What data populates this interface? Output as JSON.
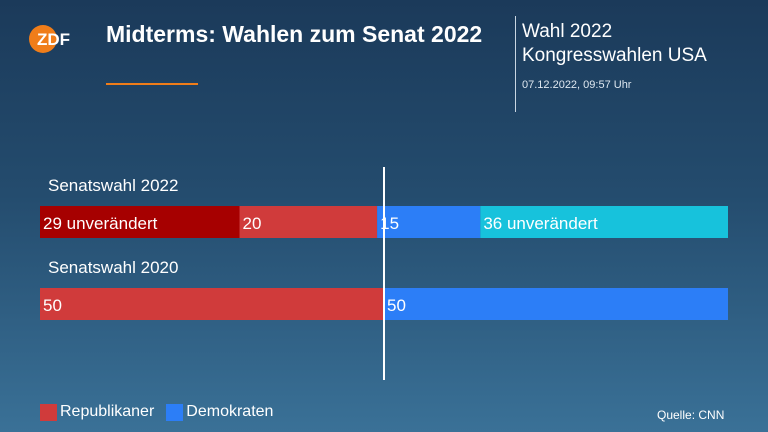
{
  "header": {
    "logo_text": "ZDF",
    "title": "Midterms: Wahlen zum Senat 2022",
    "right_line1": "Wahl 2022",
    "right_line2": "Kongresswahlen USA",
    "timestamp": "07.12.2022, 09:57 Uhr"
  },
  "colors": {
    "accent": "#f07d19",
    "republican_not_up": "#a60000",
    "republican": "#d03b3b",
    "democrat": "#2c7ef7",
    "democrat_not_up": "#17c2dc"
  },
  "chart_data": {
    "type": "bar",
    "orientation": "horizontal",
    "stacked": true,
    "xlim": [
      0,
      100
    ],
    "majority_line": 50,
    "rows": [
      {
        "label": "Senatswahl 2022",
        "segments": [
          {
            "value": 29,
            "label": "29 unverändert",
            "color": "#a60000"
          },
          {
            "value": 20,
            "label": "20",
            "color": "#d03b3b"
          },
          {
            "value": 15,
            "label": "15",
            "color": "#2c7ef7"
          },
          {
            "value": 36,
            "label": "36 unverändert",
            "color": "#17c2dc"
          }
        ]
      },
      {
        "label": "Senatswahl 2020",
        "segments": [
          {
            "value": 50,
            "label": "50",
            "color": "#d03b3b"
          },
          {
            "value": 50,
            "label": "50",
            "color": "#2c7ef7"
          }
        ]
      }
    ],
    "legend": [
      {
        "name": "Republikaner",
        "color": "#d03b3b"
      },
      {
        "name": "Demokraten",
        "color": "#2c7ef7"
      }
    ],
    "legend_position": "bottom-left"
  },
  "footer": {
    "source": "Quelle: CNN"
  }
}
